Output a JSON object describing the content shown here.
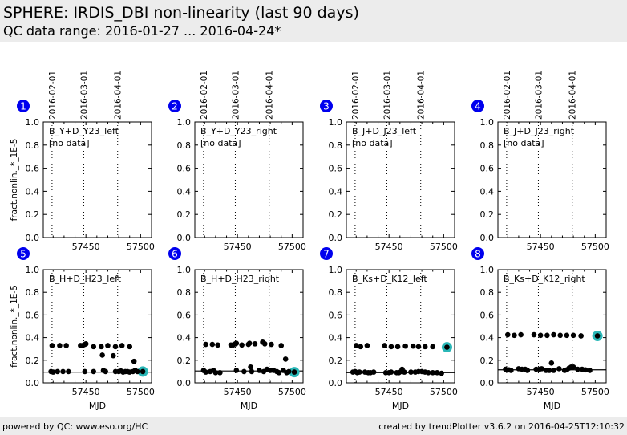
{
  "header": {
    "title": "SPHERE: IRDIS_DBI non-linearity (last 90 days)",
    "subtitle": "QC data range: 2016-01-27 ... 2016-04-24*"
  },
  "footer": {
    "left": "powered by QC: www.eso.org/HC",
    "right": "created by trendPlotter v3.6.2 on 2016-04-25T12:10:32"
  },
  "colors": {
    "badge": "#0000ee",
    "latest_highlight": "#2ab7b7",
    "points": "#000000"
  },
  "chart_data": {
    "type": "scatter",
    "ylabel": "fract.nonlin._*_1E-5",
    "xlabel": "MJD",
    "xlim": [
      57411,
      57510
    ],
    "ylim": [
      0.0,
      1.0
    ],
    "yticks": [
      "0.0",
      "0.2",
      "0.4",
      "0.6",
      "0.8",
      "1.0"
    ],
    "xticks": [
      {
        "value": 57450,
        "label": "57450"
      },
      {
        "value": 57500,
        "label": "57500"
      }
    ],
    "date_markers": [
      {
        "label": "2016-02-01",
        "mjd": 57419
      },
      {
        "label": "2016-03-01",
        "mjd": 57448
      },
      {
        "label": "2016-04-01",
        "mjd": 57479
      }
    ],
    "panels": [
      {
        "number": "1",
        "name": "B_Y+D_Y23_left",
        "note": "[no data]",
        "points": [],
        "ref": null,
        "latest": null
      },
      {
        "number": "2",
        "name": "B_Y+D_Y23_right",
        "note": "[no data]",
        "points": [],
        "ref": null,
        "latest": null
      },
      {
        "number": "3",
        "name": "B_J+D_J23_left",
        "note": "[no data]",
        "points": [],
        "ref": null,
        "latest": null
      },
      {
        "number": "4",
        "name": "B_J+D_J23_right",
        "note": "[no data]",
        "points": [],
        "ref": null,
        "latest": null
      },
      {
        "number": "5",
        "name": "B_H+D_H23_left",
        "note": "",
        "ref": 0.095,
        "latest": [
          57502,
          0.1
        ],
        "points": [
          [
            57419,
            0.33
          ],
          [
            57426,
            0.33
          ],
          [
            57432,
            0.33
          ],
          [
            57445,
            0.33
          ],
          [
            57447,
            0.33
          ],
          [
            57449,
            0.34
          ],
          [
            57450,
            0.345
          ],
          [
            57457,
            0.32
          ],
          [
            57464,
            0.32
          ],
          [
            57465,
            0.245
          ],
          [
            57470,
            0.33
          ],
          [
            57475,
            0.24
          ],
          [
            57477,
            0.32
          ],
          [
            57483,
            0.33
          ],
          [
            57490,
            0.32
          ],
          [
            57494,
            0.19
          ],
          [
            57418,
            0.1
          ],
          [
            57420,
            0.095
          ],
          [
            57424,
            0.1
          ],
          [
            57429,
            0.1
          ],
          [
            57434,
            0.1
          ],
          [
            57449,
            0.1
          ],
          [
            57457,
            0.1
          ],
          [
            57466,
            0.11
          ],
          [
            57468,
            0.1
          ],
          [
            57477,
            0.1
          ],
          [
            57480,
            0.1
          ],
          [
            57482,
            0.105
          ],
          [
            57484,
            0.095
          ],
          [
            57486,
            0.1
          ],
          [
            57488,
            0.1
          ],
          [
            57490,
            0.095
          ],
          [
            57493,
            0.1
          ],
          [
            57495,
            0.11
          ],
          [
            57497,
            0.1
          ]
        ]
      },
      {
        "number": "6",
        "name": "B_H+D_H23_right",
        "note": "",
        "ref": 0.105,
        "latest": [
          57502,
          0.095
        ],
        "points": [
          [
            57421,
            0.34
          ],
          [
            57427,
            0.34
          ],
          [
            57432,
            0.335
          ],
          [
            57444,
            0.335
          ],
          [
            57446,
            0.335
          ],
          [
            57448,
            0.345
          ],
          [
            57449,
            0.35
          ],
          [
            57454,
            0.335
          ],
          [
            57460,
            0.34
          ],
          [
            57461,
            0.35
          ],
          [
            57466,
            0.345
          ],
          [
            57473,
            0.36
          ],
          [
            57475,
            0.345
          ],
          [
            57481,
            0.34
          ],
          [
            57490,
            0.33
          ],
          [
            57494,
            0.21
          ],
          [
            57419,
            0.11
          ],
          [
            57421,
            0.095
          ],
          [
            57425,
            0.1
          ],
          [
            57428,
            0.11
          ],
          [
            57430,
            0.09
          ],
          [
            57434,
            0.09
          ],
          [
            57449,
            0.11
          ],
          [
            57456,
            0.1
          ],
          [
            57462,
            0.14
          ],
          [
            57463,
            0.1
          ],
          [
            57470,
            0.11
          ],
          [
            57474,
            0.1
          ],
          [
            57477,
            0.12
          ],
          [
            57480,
            0.11
          ],
          [
            57483,
            0.11
          ],
          [
            57486,
            0.1
          ],
          [
            57488,
            0.09
          ],
          [
            57492,
            0.11
          ],
          [
            57495,
            0.09
          ],
          [
            57497,
            0.1
          ]
        ]
      },
      {
        "number": "7",
        "name": "B_Ks+D_K12_left",
        "note": "",
        "ref": 0.09,
        "latest": [
          57503,
          0.315
        ],
        "points": [
          [
            57420,
            0.33
          ],
          [
            57424,
            0.32
          ],
          [
            57430,
            0.33
          ],
          [
            57446,
            0.33
          ],
          [
            57452,
            0.32
          ],
          [
            57458,
            0.32
          ],
          [
            57465,
            0.325
          ],
          [
            57472,
            0.325
          ],
          [
            57477,
            0.32
          ],
          [
            57483,
            0.32
          ],
          [
            57490,
            0.32
          ],
          [
            57417,
            0.095
          ],
          [
            57419,
            0.1
          ],
          [
            57421,
            0.09
          ],
          [
            57423,
            0.095
          ],
          [
            57428,
            0.095
          ],
          [
            57431,
            0.09
          ],
          [
            57433,
            0.09
          ],
          [
            57436,
            0.095
          ],
          [
            57447,
            0.09
          ],
          [
            57450,
            0.09
          ],
          [
            57452,
            0.095
          ],
          [
            57457,
            0.09
          ],
          [
            57459,
            0.09
          ],
          [
            57461,
            0.1
          ],
          [
            57462,
            0.12
          ],
          [
            57464,
            0.095
          ],
          [
            57470,
            0.095
          ],
          [
            57474,
            0.095
          ],
          [
            57477,
            0.1
          ],
          [
            57480,
            0.1
          ],
          [
            57483,
            0.095
          ],
          [
            57486,
            0.09
          ],
          [
            57490,
            0.09
          ],
          [
            57494,
            0.09
          ],
          [
            57498,
            0.085
          ]
        ]
      },
      {
        "number": "8",
        "name": "B_Ks+D_K12_right",
        "note": "",
        "ref": 0.115,
        "latest": [
          57502,
          0.415
        ],
        "points": [
          [
            57420,
            0.425
          ],
          [
            57426,
            0.42
          ],
          [
            57432,
            0.425
          ],
          [
            57444,
            0.425
          ],
          [
            57450,
            0.42
          ],
          [
            57456,
            0.42
          ],
          [
            57462,
            0.425
          ],
          [
            57468,
            0.42
          ],
          [
            57474,
            0.42
          ],
          [
            57480,
            0.42
          ],
          [
            57487,
            0.415
          ],
          [
            57418,
            0.12
          ],
          [
            57421,
            0.115
          ],
          [
            57423,
            0.11
          ],
          [
            57430,
            0.125
          ],
          [
            57433,
            0.12
          ],
          [
            57436,
            0.12
          ],
          [
            57438,
            0.11
          ],
          [
            57446,
            0.12
          ],
          [
            57449,
            0.12
          ],
          [
            57451,
            0.125
          ],
          [
            57455,
            0.11
          ],
          [
            57458,
            0.11
          ],
          [
            57460,
            0.175
          ],
          [
            57462,
            0.11
          ],
          [
            57467,
            0.125
          ],
          [
            57472,
            0.11
          ],
          [
            57474,
            0.115
          ],
          [
            57476,
            0.13
          ],
          [
            57478,
            0.14
          ],
          [
            57480,
            0.14
          ],
          [
            57484,
            0.12
          ],
          [
            57488,
            0.12
          ],
          [
            57491,
            0.115
          ],
          [
            57495,
            0.11
          ]
        ]
      }
    ]
  }
}
